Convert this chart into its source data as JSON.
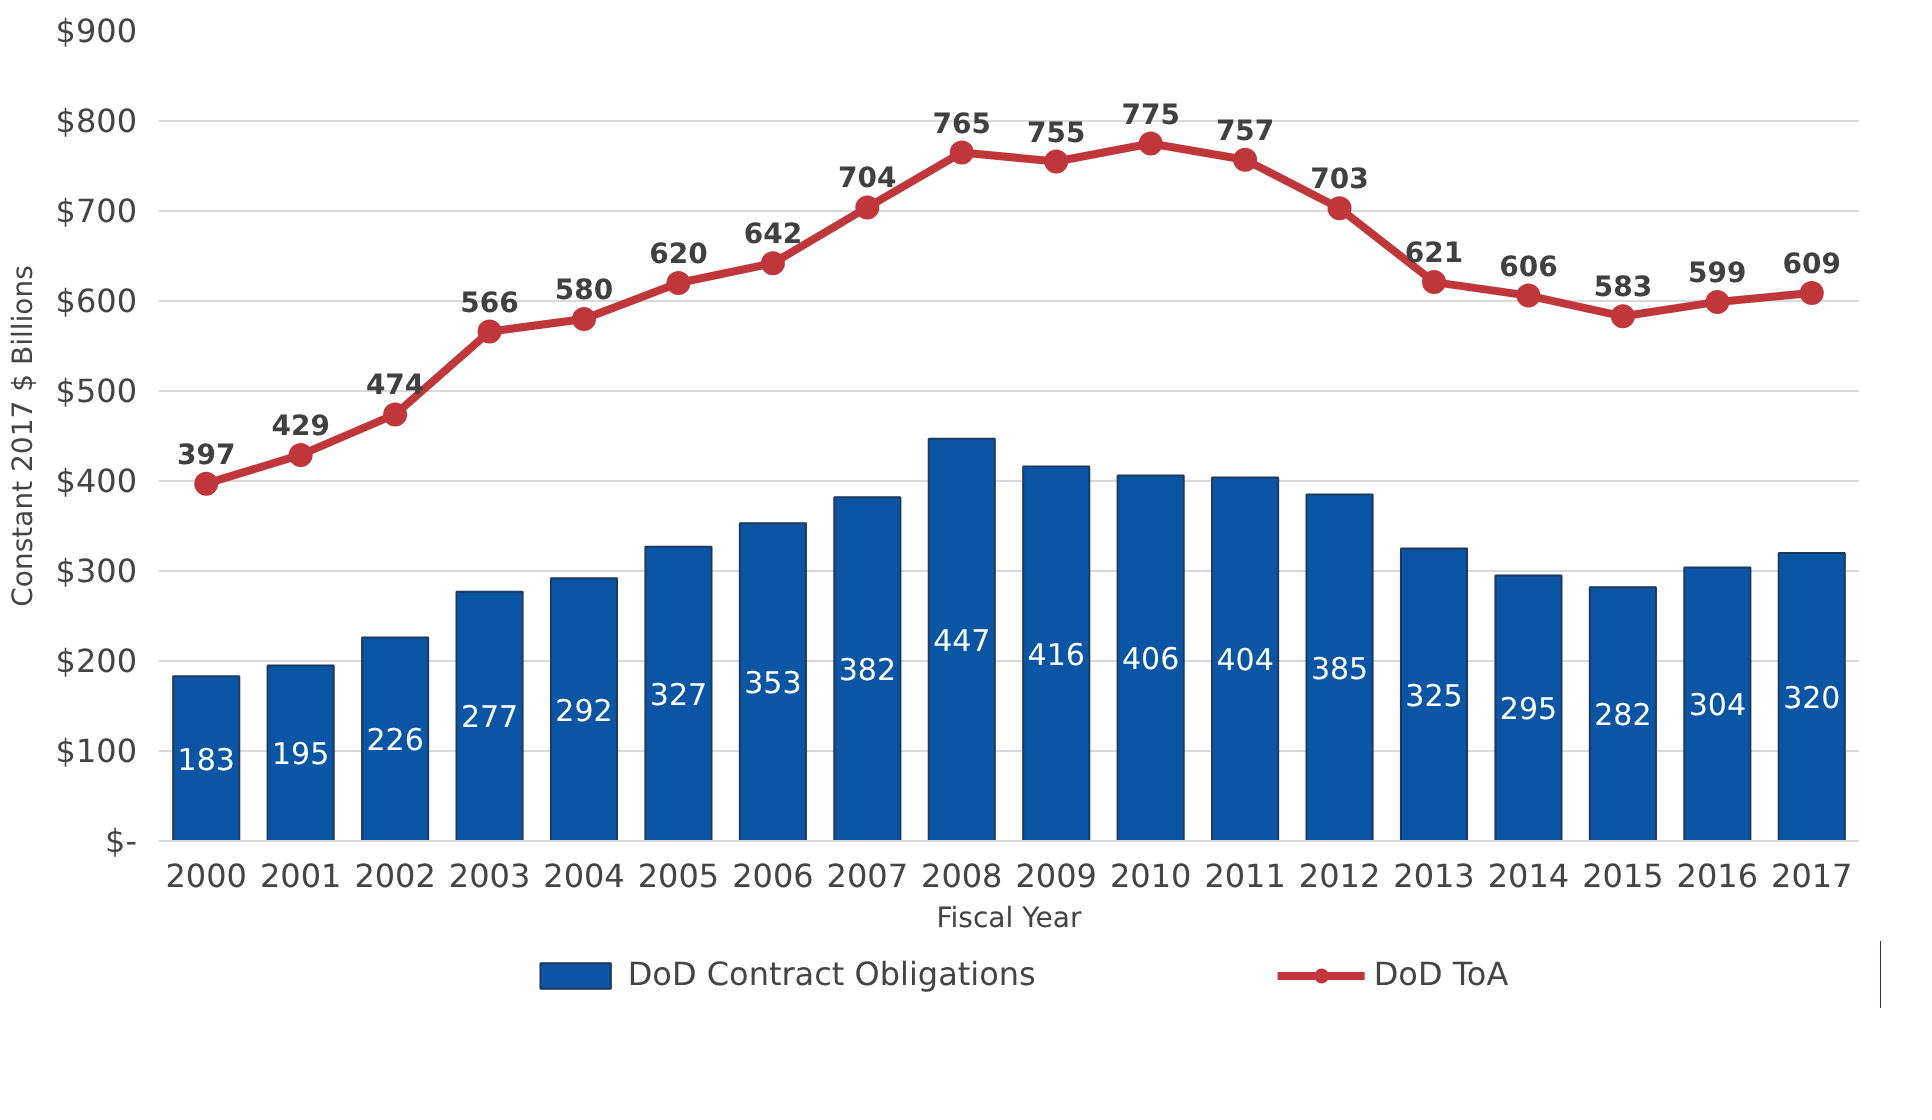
{
  "chart_data": {
    "type": "bar",
    "xlabel": "Fiscal Year",
    "ylabel": "Constant 2017 $ Billions",
    "categories": [
      "2000",
      "2001",
      "2002",
      "2003",
      "2004",
      "2005",
      "2006",
      "2007",
      "2008",
      "2009",
      "2010",
      "2011",
      "2012",
      "2013",
      "2014",
      "2015",
      "2016",
      "2017"
    ],
    "series": [
      {
        "name": "DoD Contract Obligations",
        "color": "#0a56a5",
        "values": [
          183,
          195,
          226,
          277,
          292,
          327,
          353,
          382,
          447,
          416,
          406,
          404,
          385,
          325,
          295,
          282,
          304,
          320
        ]
      },
      {
        "name": "DoD ToA",
        "type": "line",
        "color": "#c0373b",
        "values": [
          397,
          429,
          474,
          566,
          580,
          620,
          642,
          704,
          765,
          755,
          775,
          757,
          703,
          621,
          606,
          583,
          599,
          609
        ]
      }
    ],
    "ylim": [
      0,
      900
    ],
    "yticks": [
      {
        "value": 0,
        "label": "$-"
      },
      {
        "value": 100,
        "label": "$100"
      },
      {
        "value": 200,
        "label": "$200"
      },
      {
        "value": 300,
        "label": "$300"
      },
      {
        "value": 400,
        "label": "$400"
      },
      {
        "value": 500,
        "label": "$500"
      },
      {
        "value": 600,
        "label": "$600"
      },
      {
        "value": 700,
        "label": "$700"
      },
      {
        "value": 800,
        "label": "$800"
      },
      {
        "value": 900,
        "label": "$900"
      }
    ],
    "grid": "y",
    "legend": "bottom",
    "marker": "circle",
    "line_style": "solid",
    "data_labels": true
  }
}
